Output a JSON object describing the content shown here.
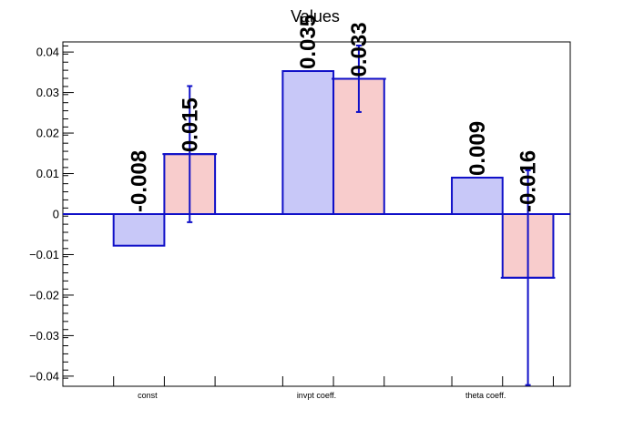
{
  "chart_data": {
    "type": "bar",
    "title": "Values",
    "xlabel": "",
    "ylabel": "",
    "categories": [
      "const",
      "invpt coeff.",
      "theta coeff."
    ],
    "series": [
      {
        "values": [
          -0.0078,
          0.0353,
          0.009
        ],
        "value_labels": [
          "-0.008",
          "0.035",
          "0.009"
        ],
        "fill": "#c8c8f8",
        "edge": "#1010c8"
      },
      {
        "values": [
          0.0148,
          0.0334,
          -0.0157
        ],
        "value_labels": [
          "0.015",
          "0.033",
          "-0.016"
        ],
        "errors": [
          0.0168,
          0.0082,
          0.0265
        ],
        "fill": "#f8cccc",
        "edge": "#1010c8"
      }
    ],
    "ylim": [
      -0.0425,
      0.0425
    ],
    "yticks": [
      -0.04,
      -0.03,
      -0.02,
      -0.01,
      0,
      0.01,
      0.02,
      0.03,
      0.04
    ],
    "ytick_labels": [
      "−0.04",
      "−0.03",
      "−0.02",
      "−0.01",
      "0",
      "0.01",
      "0.02",
      "0.03",
      "0.04"
    ],
    "zero_line_color": "#1010c8",
    "errorbar_color": "#1010c8",
    "grid": false,
    "legend": "none"
  }
}
